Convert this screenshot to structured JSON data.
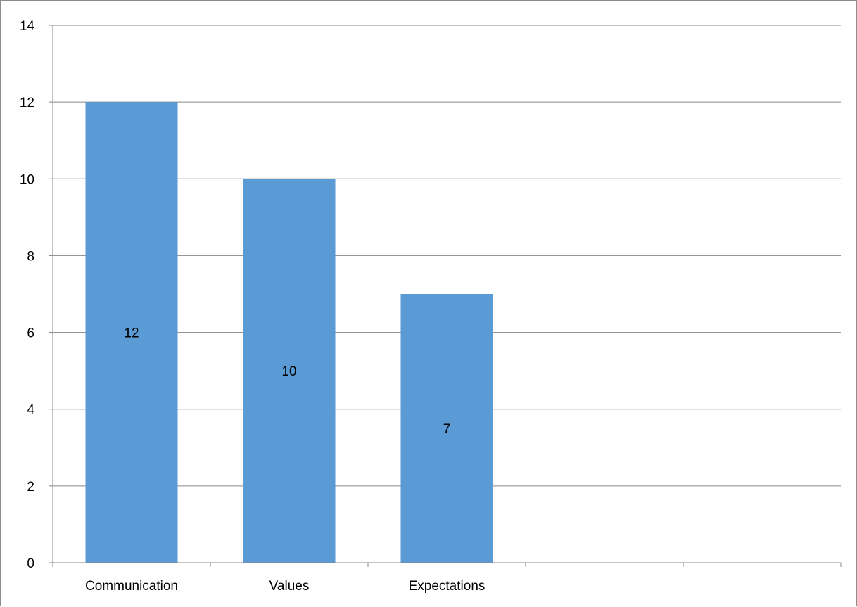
{
  "chart_data": {
    "type": "bar",
    "categories": [
      "Communication",
      "Values",
      "Expectations",
      "",
      ""
    ],
    "values": [
      12,
      10,
      7,
      null,
      null
    ],
    "data_labels": [
      "12",
      "10",
      "7",
      "",
      ""
    ],
    "title": "",
    "xlabel": "",
    "ylabel": "",
    "ylim": [
      0,
      14
    ],
    "y_ticks": [
      0,
      2,
      4,
      6,
      8,
      10,
      12,
      14
    ],
    "grid": true,
    "legend": "none",
    "colors": {
      "bar": "#5B9BD5",
      "grid": "#868686",
      "axis": "#868686",
      "text": "#000000"
    }
  }
}
